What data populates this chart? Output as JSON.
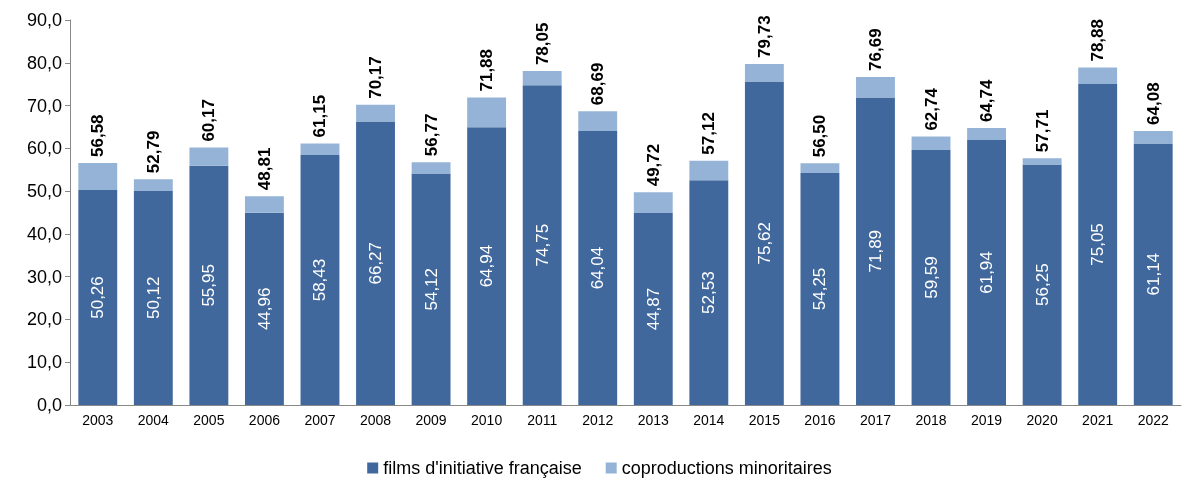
{
  "chart_data": {
    "type": "bar",
    "stacked": true,
    "categories": [
      "2003",
      "2004",
      "2005",
      "2006",
      "2007",
      "2008",
      "2009",
      "2010",
      "2011",
      "2012",
      "2013",
      "2014",
      "2015",
      "2016",
      "2017",
      "2018",
      "2019",
      "2020",
      "2021",
      "2022"
    ],
    "series": [
      {
        "name": "films d'initiative française",
        "color": "#41689c",
        "values": [
          50.26,
          50.12,
          55.95,
          44.96,
          58.43,
          66.27,
          54.12,
          64.94,
          74.75,
          64.04,
          44.87,
          52.53,
          75.62,
          54.25,
          71.89,
          59.59,
          61.94,
          56.25,
          75.05,
          61.14
        ],
        "value_labels": [
          "50,26",
          "50,12",
          "55,95",
          "44,96",
          "58,43",
          "66,27",
          "54,12",
          "64,94",
          "74,75",
          "64,04",
          "44,87",
          "52,53",
          "75,62",
          "54,25",
          "71,89",
          "59,59",
          "61,94",
          "56,25",
          "75,05",
          "61,14"
        ]
      },
      {
        "name": "coproductions minoritaires",
        "color": "#95b3d7",
        "values": [
          6.32,
          2.67,
          4.22,
          3.85,
          2.72,
          3.9,
          2.65,
          6.94,
          3.3,
          4.65,
          4.85,
          4.59,
          4.11,
          2.25,
          4.8,
          3.15,
          2.8,
          1.46,
          3.83,
          2.94
        ]
      }
    ],
    "totals": [
      "56,58",
      "52,79",
      "60,17",
      "48,81",
      "61,15",
      "70,17",
      "56,77",
      "71,88",
      "78,05",
      "68,69",
      "49,72",
      "57,12",
      "79,73",
      "56,50",
      "76,69",
      "62,74",
      "64,74",
      "57,71",
      "78,88",
      "64,08"
    ],
    "ylim": [
      0,
      90
    ],
    "yticks": [
      {
        "value": 0,
        "label": "0,0"
      },
      {
        "value": 10,
        "label": "10,0"
      },
      {
        "value": 20,
        "label": "20,0"
      },
      {
        "value": 30,
        "label": "30,0"
      },
      {
        "value": 40,
        "label": "40,0"
      },
      {
        "value": 50,
        "label": "50,0"
      },
      {
        "value": 60,
        "label": "60,0"
      },
      {
        "value": 70,
        "label": "70,0"
      },
      {
        "value": 80,
        "label": "80,0"
      },
      {
        "value": 90,
        "label": "90,0"
      }
    ],
    "grid": false,
    "legend": "bottom"
  }
}
